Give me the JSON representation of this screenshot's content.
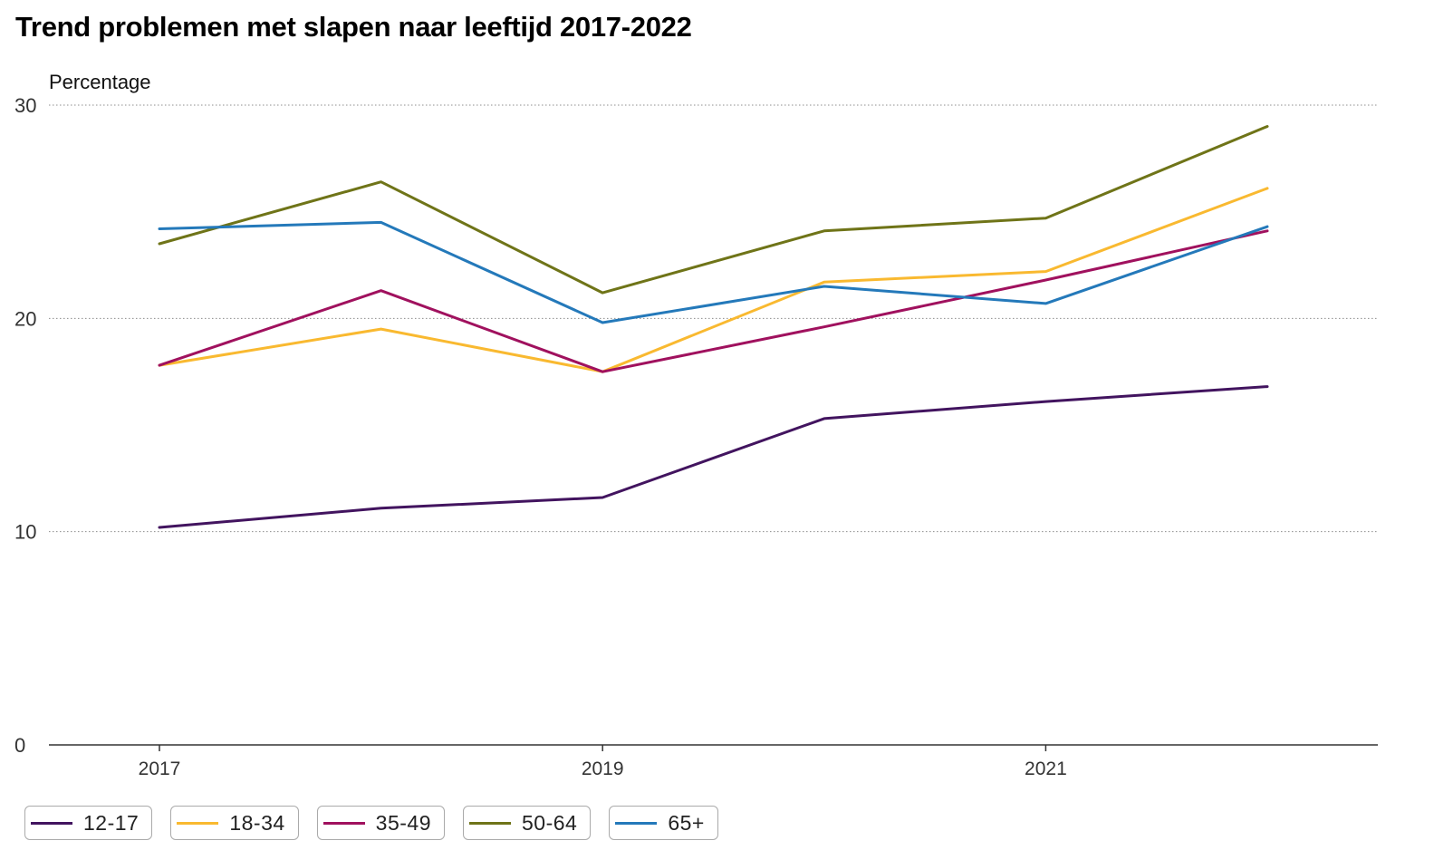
{
  "chart_data": {
    "type": "line",
    "title": "Trend problemen met slapen naar leeftijd 2017-2022",
    "ylabel": "Percentage",
    "xlabel": "",
    "x": [
      2017,
      2018,
      2019,
      2020,
      2021,
      2022
    ],
    "x_tick_labels": [
      "2017",
      "2019",
      "2021"
    ],
    "x_tick_values": [
      2017,
      2019,
      2021
    ],
    "ylim": [
      0,
      30
    ],
    "y_ticks": [
      0,
      10,
      20,
      30
    ],
    "grid": "horizontal dotted",
    "legend_position": "bottom-left",
    "series": [
      {
        "name": "12-17",
        "color": "#42145f",
        "values": [
          10.2,
          11.1,
          11.6,
          15.3,
          16.1,
          16.8
        ]
      },
      {
        "name": "18-34",
        "color": "#f9b930",
        "values": [
          17.8,
          19.5,
          17.5,
          21.7,
          22.2,
          26.1
        ]
      },
      {
        "name": "35-49",
        "color": "#a0115e",
        "values": [
          17.8,
          21.3,
          17.5,
          19.6,
          21.8,
          24.1
        ]
      },
      {
        "name": "50-64",
        "color": "#6f7418",
        "values": [
          23.5,
          26.4,
          21.2,
          24.1,
          24.7,
          29.0
        ]
      },
      {
        "name": "65+",
        "color": "#2479ba",
        "values": [
          24.2,
          24.5,
          19.8,
          21.5,
          20.7,
          24.3
        ]
      }
    ]
  }
}
